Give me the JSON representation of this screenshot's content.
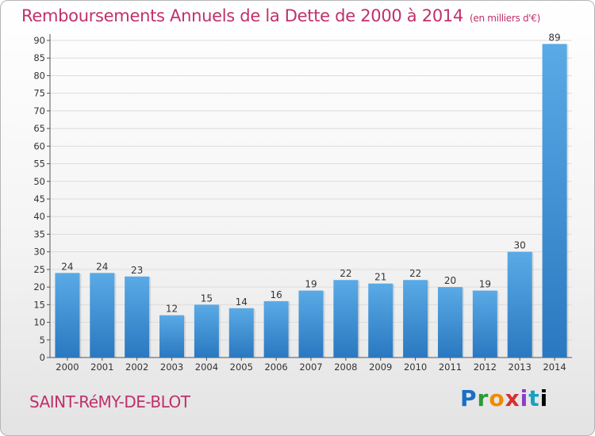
{
  "header": {
    "title": "Remboursements Annuels de la Dette de 2000 à 2014",
    "unit": "(en milliers d'€)"
  },
  "footer": {
    "town": "SAINT-RéMY-DE-BLOT",
    "logo_letters": [
      "P",
      "r",
      "o",
      "x",
      "i",
      "t",
      "i"
    ]
  },
  "colors": {
    "title": "#c0306a",
    "bar_light": "#5aaae6",
    "bar_dark": "#2a78c0"
  },
  "chart_data": {
    "type": "bar",
    "categories": [
      "2000",
      "2001",
      "2002",
      "2003",
      "2004",
      "2005",
      "2006",
      "2007",
      "2008",
      "2009",
      "2010",
      "2011",
      "2012",
      "2013",
      "2014"
    ],
    "values": [
      24,
      24,
      23,
      12,
      15,
      14,
      16,
      19,
      22,
      21,
      22,
      20,
      19,
      30,
      89
    ],
    "ylim": [
      0,
      90
    ],
    "yticks": [
      0,
      5,
      10,
      15,
      20,
      25,
      30,
      35,
      40,
      45,
      50,
      55,
      60,
      65,
      70,
      75,
      80,
      85,
      90
    ],
    "grid": true,
    "data_labels": true
  }
}
